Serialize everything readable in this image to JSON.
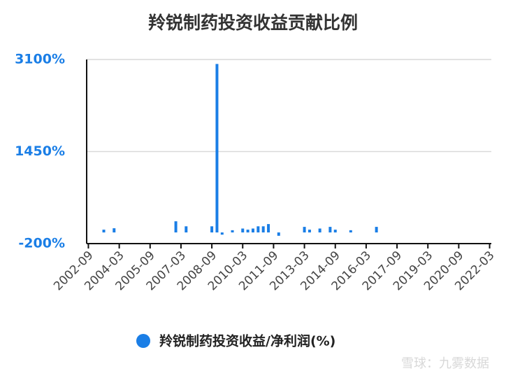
{
  "chart_data": {
    "type": "bar",
    "title": "羚锐制药投资收益贡献比例",
    "x": [
      "2003-06",
      "2003-12",
      "2006-12",
      "2007-06",
      "2008-09",
      "2008-12",
      "2009-03",
      "2009-09",
      "2010-03",
      "2010-06",
      "2010-09",
      "2010-12",
      "2011-03",
      "2011-06",
      "2011-12",
      "2013-03",
      "2013-06",
      "2013-12",
      "2014-06",
      "2014-09",
      "2015-06",
      "2016-09"
    ],
    "series": [
      {
        "name": "羚锐制药投资收益/净利润(%)",
        "color": "#1a7ee6",
        "values": [
          50,
          75,
          200,
          110,
          110,
          3020,
          -40,
          40,
          70,
          50,
          70,
          110,
          110,
          150,
          -60,
          100,
          50,
          70,
          100,
          50,
          40,
          100
        ]
      }
    ],
    "xlim": [
      "2002-08",
      "2022-04"
    ],
    "xticks": [
      "2002-09",
      "2004-03",
      "2005-09",
      "2007-03",
      "2008-09",
      "2010-03",
      "2011-09",
      "2013-03",
      "2014-09",
      "2016-03",
      "2017-09",
      "2019-03",
      "2020-09",
      "2022-03"
    ],
    "ylim": [
      -200,
      3100
    ],
    "yticks": [
      {
        "value": -200,
        "label": "-200%"
      },
      {
        "value": 1450,
        "label": "1450%"
      },
      {
        "value": 3100,
        "label": "3100%"
      }
    ],
    "grid": true,
    "legend": "bottom",
    "watermark": "雪球：九雾数据"
  }
}
